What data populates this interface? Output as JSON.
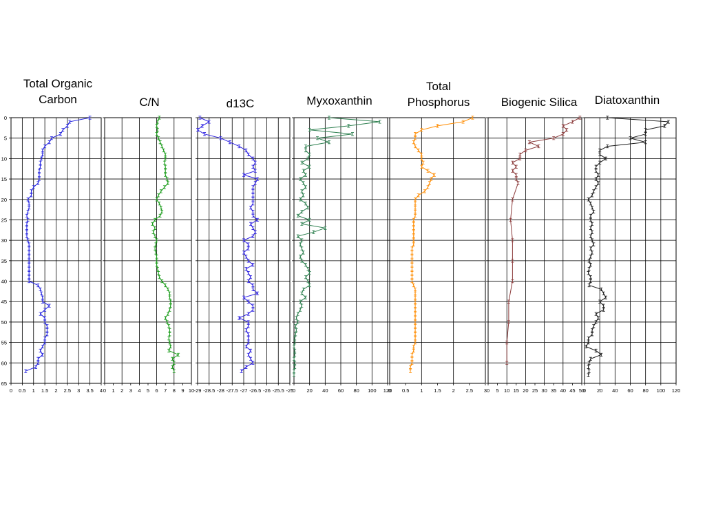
{
  "depth_axis": {
    "ticks": [
      0,
      5,
      10,
      15,
      20,
      25,
      30,
      35,
      40,
      45,
      50,
      55,
      60,
      65
    ],
    "range": [
      0,
      65
    ]
  },
  "chart_data": [
    {
      "type": "line",
      "title_lines": [
        "Total Organic",
        "Carbon"
      ],
      "color": "#2424e0",
      "xlim": [
        0,
        4
      ],
      "xticks": [
        0,
        0.5,
        1,
        1.5,
        2,
        2.5,
        3,
        3.5,
        4
      ],
      "xtick_labels": [
        "0",
        "0.5",
        "1",
        "1.5",
        "2",
        "2.5",
        "3",
        "3.5",
        "4"
      ],
      "xgrid": [
        0,
        0.5,
        1,
        1.5,
        2,
        2.5,
        3,
        3.5,
        4
      ],
      "series": [
        {
          "depth": [
            0,
            1,
            2,
            3,
            4,
            5,
            6,
            7,
            8,
            9,
            10,
            11,
            12,
            13,
            14,
            15,
            16,
            17,
            18,
            19,
            20,
            21,
            22,
            23,
            24,
            25,
            26,
            27,
            28,
            29,
            30,
            31,
            32,
            33,
            34,
            35,
            36,
            37,
            38,
            39,
            40,
            41,
            42,
            43,
            44,
            45,
            46,
            47,
            48,
            49,
            50,
            51,
            52,
            53,
            54,
            55,
            56,
            57,
            58,
            59,
            60,
            61,
            62
          ],
          "values": [
            3.5,
            2.6,
            2.5,
            2.3,
            2.2,
            1.8,
            1.7,
            1.5,
            1.4,
            1.4,
            1.35,
            1.3,
            1.3,
            1.25,
            1.25,
            1.25,
            1.2,
            1.0,
            0.9,
            0.9,
            0.75,
            0.8,
            0.8,
            0.75,
            0.7,
            0.75,
            0.7,
            0.7,
            0.7,
            0.7,
            0.75,
            0.8,
            0.8,
            0.8,
            0.8,
            0.8,
            0.8,
            0.8,
            0.8,
            0.8,
            0.8,
            1.2,
            1.3,
            1.35,
            1.4,
            1.4,
            1.7,
            1.5,
            1.3,
            1.5,
            1.5,
            1.6,
            1.6,
            1.6,
            1.5,
            1.5,
            1.4,
            1.3,
            1.4,
            1.2,
            1.2,
            1.1,
            0.65
          ]
        }
      ]
    },
    {
      "type": "line",
      "title_lines": [
        "C/N"
      ],
      "color": "#1a9c1a",
      "xlim": [
        0,
        10
      ],
      "xticks": [
        0,
        1,
        2,
        3,
        4,
        5,
        6,
        7,
        8,
        9,
        10
      ],
      "xtick_labels": [
        "0",
        "1",
        "2",
        "3",
        "4",
        "5",
        "6",
        "7",
        "8",
        "9",
        "10"
      ],
      "xgrid": [
        0,
        2,
        4,
        6,
        8,
        10
      ],
      "series": [
        {
          "depth": [
            0,
            1,
            2,
            3,
            4,
            5,
            6,
            7,
            8,
            9,
            10,
            11,
            12,
            13,
            14,
            15,
            16,
            17,
            18,
            19,
            20,
            21,
            22,
            23,
            24,
            25,
            26,
            27,
            28,
            29,
            30,
            31,
            32,
            33,
            34,
            35,
            36,
            37,
            38,
            39,
            40,
            41,
            42,
            43,
            44,
            45,
            46,
            47,
            48,
            49,
            50,
            51,
            52,
            53,
            54,
            55,
            56,
            57,
            58,
            59,
            60,
            61,
            62
          ],
          "values": [
            6.3,
            6.1,
            6.0,
            6.1,
            6.0,
            6.2,
            6.4,
            6.6,
            6.8,
            7.0,
            7.0,
            6.9,
            7.0,
            7.0,
            7.0,
            7.2,
            7.3,
            6.9,
            6.5,
            6.2,
            6.0,
            6.3,
            6.5,
            6.6,
            6.4,
            5.8,
            5.5,
            5.8,
            5.6,
            5.8,
            6.0,
            5.9,
            5.8,
            5.9,
            6.0,
            6.0,
            6.0,
            6.1,
            6.2,
            6.3,
            6.6,
            7.0,
            7.3,
            7.5,
            7.5,
            7.6,
            7.6,
            7.5,
            7.3,
            7.0,
            7.2,
            7.4,
            7.5,
            7.5,
            7.4,
            7.5,
            7.6,
            7.4,
            8.5,
            7.8,
            8.0,
            7.8,
            8.0
          ]
        }
      ]
    },
    {
      "type": "line",
      "title_lines": [
        "d13C"
      ],
      "color": "#2a1ee0",
      "xlim": [
        -29,
        -25
      ],
      "xticks": [
        -29,
        -28.5,
        -28,
        -27.5,
        -27,
        -26.5,
        -26,
        -25.5,
        -25
      ],
      "xtick_labels": [
        "-29",
        "-28.5",
        "-28",
        "-27.5",
        "-27",
        "-26.5",
        "-26",
        "-25.5",
        "-25"
      ],
      "xgrid": [
        -29,
        -28.5,
        -28,
        -27.5,
        -27,
        -26.5,
        -26,
        -25.5,
        -25
      ],
      "series": [
        {
          "depth": [
            0,
            1,
            2,
            3,
            4,
            5,
            6,
            7,
            8,
            9,
            10,
            11,
            12,
            13,
            14,
            15,
            16,
            17,
            18,
            19,
            20,
            21,
            22,
            23,
            24,
            25,
            26,
            27,
            28,
            29,
            30,
            31,
            32,
            33,
            34,
            35,
            36,
            37,
            38,
            39,
            40,
            41,
            42,
            43,
            44,
            45,
            46,
            47,
            48,
            49,
            50,
            51,
            52,
            53,
            54,
            55,
            56,
            57,
            58,
            59,
            60,
            61,
            62
          ],
          "values": [
            -28.9,
            -28.5,
            -28.8,
            -29.0,
            -28.7,
            -28.0,
            -27.6,
            -27.2,
            -26.9,
            -26.8,
            -26.6,
            -26.5,
            -26.6,
            -26.5,
            -27.0,
            -26.4,
            -26.5,
            -26.6,
            -26.6,
            -26.6,
            -26.6,
            -26.6,
            -26.7,
            -26.6,
            -26.6,
            -26.4,
            -26.7,
            -26.6,
            -26.5,
            -26.6,
            -27.0,
            -26.8,
            -26.8,
            -27.0,
            -26.9,
            -26.8,
            -26.6,
            -26.9,
            -26.8,
            -26.7,
            -26.8,
            -26.6,
            -26.6,
            -26.4,
            -27.0,
            -26.8,
            -26.6,
            -26.6,
            -26.8,
            -27.2,
            -26.8,
            -26.8,
            -26.9,
            -26.8,
            -26.8,
            -26.8,
            -26.9,
            -26.7,
            -26.8,
            -26.7,
            -26.6,
            -26.9,
            -27.1
          ]
        }
      ]
    },
    {
      "type": "line",
      "title_lines": [
        "Myxoxanthin"
      ],
      "color": "#2e8050",
      "xlim": [
        0,
        120
      ],
      "xticks": [
        0,
        20,
        40,
        60,
        80,
        100,
        120
      ],
      "xtick_labels": [
        "0",
        "20",
        "40",
        "60",
        "80",
        "100",
        "120"
      ],
      "xgrid": [
        0,
        20,
        40,
        60,
        80,
        100,
        120
      ],
      "series": [
        {
          "depth": [
            0,
            1,
            2,
            3,
            4,
            5,
            6,
            7,
            8,
            9,
            10,
            11,
            12,
            13,
            14,
            15,
            16,
            17,
            18,
            19,
            20,
            21,
            22,
            23,
            24,
            25,
            26,
            27,
            28,
            29,
            30,
            31,
            32,
            33,
            34,
            35,
            36,
            37,
            38,
            39,
            40,
            41,
            42,
            43,
            44,
            45,
            46,
            47,
            48,
            49,
            50,
            51,
            52,
            53,
            54,
            55,
            56,
            57,
            58,
            59,
            60,
            61,
            62,
            63
          ],
          "values": [
            45,
            110,
            70,
            20,
            75,
            30,
            45,
            15,
            15,
            20,
            18,
            10,
            20,
            12,
            15,
            8,
            12,
            15,
            10,
            12,
            8,
            15,
            18,
            10,
            5,
            20,
            10,
            40,
            25,
            5,
            10,
            8,
            10,
            12,
            8,
            10,
            15,
            18,
            20,
            15,
            18,
            20,
            12,
            10,
            15,
            8,
            10,
            8,
            5,
            3,
            5,
            2,
            3,
            2,
            1,
            1,
            0,
            1,
            1,
            0,
            1,
            1,
            0,
            0
          ]
        }
      ]
    },
    {
      "type": "line",
      "title_lines": [
        "Total",
        "Phosphorus"
      ],
      "color": "#ff8c00",
      "xlim": [
        0,
        3
      ],
      "xticks": [
        0,
        0.5,
        1,
        1.5,
        2,
        2.5,
        3
      ],
      "xtick_labels": [
        "0",
        "0.5",
        "1",
        "1.5",
        "2",
        "2.5",
        "3"
      ],
      "xgrid": [
        0,
        1,
        2,
        3
      ],
      "series": [
        {
          "depth": [
            0,
            1,
            2,
            3,
            4,
            5,
            6,
            7,
            8,
            9,
            10,
            11,
            12,
            13,
            14,
            15,
            16,
            17,
            18,
            19,
            20,
            21,
            22,
            23,
            24,
            25,
            26,
            27,
            28,
            29,
            30,
            31,
            32,
            33,
            34,
            35,
            36,
            37,
            38,
            39,
            40,
            41,
            42,
            43,
            44,
            45,
            46,
            47,
            48,
            49,
            50,
            51,
            52,
            53,
            54,
            55,
            56,
            57,
            58,
            59,
            60,
            61,
            62
          ],
          "values": [
            2.6,
            2.3,
            1.5,
            1.0,
            0.8,
            0.8,
            0.75,
            0.8,
            0.9,
            1.0,
            1.0,
            1.05,
            1.0,
            1.2,
            1.4,
            1.3,
            1.25,
            1.2,
            1.1,
            0.9,
            0.8,
            0.8,
            0.8,
            0.8,
            0.8,
            0.75,
            0.75,
            0.75,
            0.75,
            0.75,
            0.75,
            0.75,
            0.7,
            0.7,
            0.7,
            0.7,
            0.7,
            0.7,
            0.7,
            0.7,
            0.7,
            0.75,
            0.8,
            0.8,
            0.8,
            0.8,
            0.8,
            0.8,
            0.8,
            0.8,
            0.8,
            0.8,
            0.8,
            0.8,
            0.8,
            0.8,
            0.75,
            0.75,
            0.7,
            0.7,
            0.7,
            0.65,
            0.65
          ]
        }
      ]
    },
    {
      "type": "line",
      "title_lines": [
        "Biogenic Silica"
      ],
      "color": "#8b3a3a",
      "xlim": [
        0,
        50
      ],
      "xticks": [
        0,
        5,
        10,
        15,
        20,
        25,
        30,
        35,
        40,
        45,
        50
      ],
      "xtick_labels": [
        "0",
        "5",
        "10",
        "15",
        "20",
        "25",
        "30",
        "35",
        "40",
        "45",
        "50"
      ],
      "xgrid": [
        0,
        10,
        20,
        30,
        40,
        50
      ],
      "series": [
        {
          "depth": [
            0,
            1,
            2,
            3,
            4,
            5,
            6,
            7,
            8,
            9,
            10,
            11,
            12,
            13,
            14,
            15,
            16,
            20,
            25,
            30,
            35,
            40,
            45,
            50,
            55,
            60
          ],
          "values": [
            49,
            45,
            40,
            42,
            40,
            35,
            22,
            27,
            20,
            17,
            17,
            13,
            15,
            13,
            15,
            15,
            16,
            13,
            12,
            13,
            13,
            13,
            11,
            11,
            10,
            10
          ]
        }
      ]
    },
    {
      "type": "line",
      "title_lines": [
        "Diatoxanthin"
      ],
      "color": "#1a1a1a",
      "xlim": [
        0,
        120
      ],
      "xticks": [
        0,
        20,
        40,
        60,
        80,
        100,
        120
      ],
      "xtick_labels": [
        "0",
        "20",
        "40",
        "60",
        "80",
        "100",
        "120"
      ],
      "xgrid": [
        0,
        20,
        40,
        60,
        80,
        100,
        120
      ],
      "series": [
        {
          "depth": [
            0,
            1,
            2,
            3,
            4,
            5,
            6,
            7,
            8,
            9,
            10,
            11,
            12,
            13,
            14,
            15,
            16,
            17,
            18,
            19,
            20,
            21,
            22,
            23,
            24,
            25,
            26,
            27,
            28,
            29,
            30,
            31,
            32,
            33,
            34,
            35,
            36,
            37,
            38,
            39,
            40,
            41,
            42,
            43,
            44,
            45,
            46,
            47,
            48,
            49,
            50,
            51,
            52,
            53,
            54,
            55,
            56,
            57,
            58,
            59,
            60,
            61,
            62,
            63
          ],
          "values": [
            30,
            110,
            105,
            80,
            80,
            60,
            80,
            30,
            20,
            20,
            28,
            20,
            15,
            15,
            18,
            15,
            18,
            15,
            12,
            10,
            5,
            8,
            10,
            12,
            8,
            8,
            10,
            8,
            10,
            8,
            10,
            12,
            8,
            10,
            8,
            6,
            8,
            6,
            5,
            8,
            8,
            6,
            22,
            25,
            28,
            20,
            25,
            25,
            15,
            18,
            15,
            12,
            10,
            10,
            5,
            5,
            2,
            15,
            22,
            8,
            6,
            5,
            6,
            5
          ]
        }
      ]
    }
  ]
}
